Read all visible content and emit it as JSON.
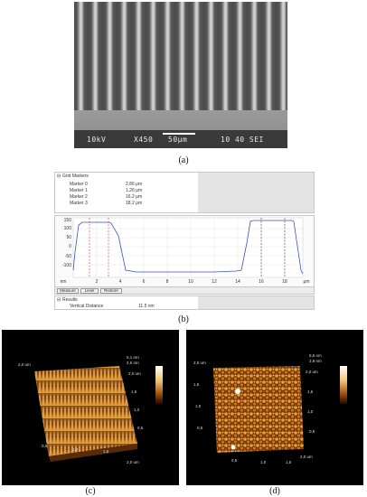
{
  "panel_a": {
    "sem_voltage": "10kV",
    "sem_magnification": "X450",
    "sem_scale": "50μm",
    "sem_tail": "10 40 SEI",
    "caption": "(a)"
  },
  "panel_b": {
    "grid_title": "Grid Markers",
    "markers": [
      {
        "name": "Marker 0",
        "value": "2.86 μm"
      },
      {
        "name": "Marker 1",
        "value": "1.26 μm"
      },
      {
        "name": "Marker 2",
        "value": "16.2 μm"
      },
      {
        "name": "Marker 3",
        "value": "18.2 μm"
      }
    ],
    "y_ticks": [
      "150",
      "100",
      "50",
      "0",
      "-50",
      "-100"
    ],
    "y_unit": "nm",
    "x_ticks": [
      "2",
      "4",
      "6",
      "8",
      "10",
      "12",
      "14",
      "16",
      "18"
    ],
    "x_unit": "μm",
    "buttons": {
      "measure": "Measure",
      "level": "Level",
      "restore": "Restore"
    },
    "results_title": "Results",
    "result_label": "Vertical Distance",
    "result_value": "11.5 nm",
    "caption": "(b)",
    "line_color": "#3b4fc4",
    "marker_red": "#d03030",
    "marker_dark": "#444444"
  },
  "panel_c": {
    "z_max": "5,1 nm",
    "z_mid": "2,5 nm",
    "axis_right": [
      "1,5",
      "1,0",
      "0,5"
    ],
    "axis_right_end": "2,0 um",
    "axis_left_top": "2,0 um",
    "axis_bottom": [
      "0,5",
      "1,0",
      "1,5"
    ],
    "axis_bottom_end": "2,0 um",
    "caption": "(c)"
  },
  "panel_d": {
    "z_max": "5,6 nm",
    "z_mid": "2,8 nm",
    "axis_right": [
      "1,5",
      "1,0",
      "0,5"
    ],
    "axis_right_end": "2,0 um",
    "axis_left_top": "2,0 um",
    "axis_left": [
      "1,5",
      "1,0",
      "0,5"
    ],
    "axis_bottom": [
      "0,5",
      "1,0",
      "1,5"
    ],
    "axis_bottom_end": "2,0 um",
    "caption": "(d)"
  }
}
